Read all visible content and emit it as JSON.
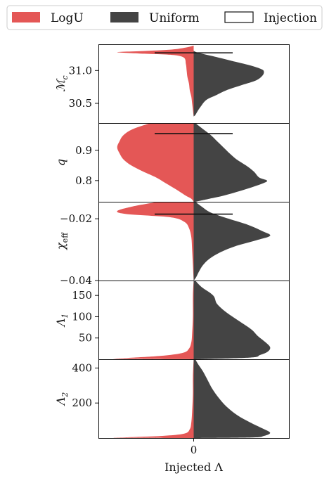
{
  "legend": {
    "items": [
      {
        "label": "LogU",
        "color": "#e45756",
        "kind": "fill"
      },
      {
        "label": "Uniform",
        "color": "#444444",
        "kind": "fill"
      },
      {
        "label": "Injection",
        "color": "#ffffff",
        "kind": "outline"
      }
    ]
  },
  "chart_data": {
    "type": "violin",
    "xlabel": "Injected Λ",
    "x_ticks": [
      "0"
    ],
    "colors": {
      "left": "#e45756",
      "right": "#444444",
      "injection": "#111111"
    },
    "panels": [
      {
        "id": "mc",
        "ylabel_main": "ℳ",
        "ylabel_sub": "c",
        "ylim": [
          30.2,
          31.4
        ],
        "yticks": [
          31.0,
          30.5
        ],
        "ytick_labels": [
          "31.0",
          "30.5"
        ],
        "injection": 31.27,
        "left": [
          [
            31.38,
            0.0
          ],
          [
            31.35,
            0.1
          ],
          [
            31.32,
            0.28
          ],
          [
            31.3,
            0.6
          ],
          [
            31.28,
            0.98
          ],
          [
            31.26,
            0.7
          ],
          [
            31.24,
            0.3
          ],
          [
            31.2,
            0.13
          ],
          [
            31.1,
            0.1
          ],
          [
            31.0,
            0.09
          ],
          [
            30.9,
            0.08
          ],
          [
            30.8,
            0.06
          ],
          [
            30.7,
            0.05
          ],
          [
            30.6,
            0.03
          ],
          [
            30.5,
            0.02
          ],
          [
            30.4,
            0.01
          ],
          [
            30.3,
            0.0
          ]
        ],
        "right": [
          [
            31.3,
            0.0
          ],
          [
            31.27,
            0.06
          ],
          [
            31.22,
            0.24
          ],
          [
            31.15,
            0.48
          ],
          [
            31.08,
            0.72
          ],
          [
            31.02,
            0.87
          ],
          [
            30.98,
            0.9
          ],
          [
            30.92,
            0.88
          ],
          [
            30.85,
            0.8
          ],
          [
            30.78,
            0.62
          ],
          [
            30.7,
            0.42
          ],
          [
            30.62,
            0.28
          ],
          [
            30.55,
            0.16
          ],
          [
            30.45,
            0.09
          ],
          [
            30.38,
            0.05
          ],
          [
            30.32,
            0.02
          ],
          [
            30.3,
            0.0
          ]
        ]
      },
      {
        "id": "q",
        "ylabel_main": "q",
        "ylabel_sub": "",
        "ylim": [
          0.73,
          0.99
        ],
        "yticks": [
          0.9,
          0.8
        ],
        "ytick_labels": [
          "0.9",
          "0.8"
        ],
        "injection": 0.955,
        "left": [
          [
            0.99,
            0.55
          ],
          [
            0.97,
            0.78
          ],
          [
            0.95,
            0.9
          ],
          [
            0.93,
            0.95
          ],
          [
            0.91,
            0.98
          ],
          [
            0.89,
            0.95
          ],
          [
            0.87,
            0.9
          ],
          [
            0.85,
            0.8
          ],
          [
            0.83,
            0.65
          ],
          [
            0.81,
            0.48
          ],
          [
            0.79,
            0.35
          ],
          [
            0.77,
            0.22
          ],
          [
            0.75,
            0.1
          ],
          [
            0.74,
            0.03
          ],
          [
            0.73,
            0.0
          ]
        ],
        "right": [
          [
            0.99,
            0.02
          ],
          [
            0.97,
            0.12
          ],
          [
            0.95,
            0.22
          ],
          [
            0.93,
            0.3
          ],
          [
            0.91,
            0.38
          ],
          [
            0.89,
            0.46
          ],
          [
            0.87,
            0.55
          ],
          [
            0.85,
            0.67
          ],
          [
            0.83,
            0.77
          ],
          [
            0.81,
            0.84
          ],
          [
            0.8,
            0.94
          ],
          [
            0.79,
            0.88
          ],
          [
            0.77,
            0.65
          ],
          [
            0.75,
            0.38
          ],
          [
            0.74,
            0.2
          ],
          [
            0.73,
            0.02
          ]
        ]
      },
      {
        "id": "chi",
        "ylabel_main": "χ",
        "ylabel_sub": "eff",
        "ylim": [
          -0.04,
          -0.0145
        ],
        "yticks": [
          -0.02,
          -0.04
        ],
        "ytick_labels": [
          "−0.02",
          "−0.04"
        ],
        "injection": -0.0185,
        "left": [
          [
            -0.0145,
            0.45
          ],
          [
            -0.016,
            0.78
          ],
          [
            -0.0175,
            0.98
          ],
          [
            -0.0185,
            0.85
          ],
          [
            -0.0195,
            0.3
          ],
          [
            -0.021,
            0.12
          ],
          [
            -0.023,
            0.06
          ],
          [
            -0.026,
            0.03
          ],
          [
            -0.03,
            0.02
          ],
          [
            -0.035,
            0.01
          ],
          [
            -0.04,
            0.0
          ]
        ],
        "right": [
          [
            -0.0145,
            0.02
          ],
          [
            -0.016,
            0.1
          ],
          [
            -0.018,
            0.22
          ],
          [
            -0.02,
            0.45
          ],
          [
            -0.022,
            0.7
          ],
          [
            -0.024,
            0.88
          ],
          [
            -0.0255,
            0.98
          ],
          [
            -0.027,
            0.8
          ],
          [
            -0.029,
            0.52
          ],
          [
            -0.031,
            0.33
          ],
          [
            -0.033,
            0.2
          ],
          [
            -0.035,
            0.12
          ],
          [
            -0.037,
            0.07
          ],
          [
            -0.039,
            0.03
          ],
          [
            -0.04,
            0.0
          ]
        ]
      },
      {
        "id": "lambda1",
        "ylabel_main": "Λ",
        "ylabel_sub": "1",
        "ylim": [
          0,
          185
        ],
        "yticks": [
          150,
          100,
          50
        ],
        "ytick_labels": [
          "150",
          "100",
          "50"
        ],
        "injection": null,
        "left": [
          [
            185,
            0.0
          ],
          [
            150,
            0.01
          ],
          [
            100,
            0.01
          ],
          [
            60,
            0.02
          ],
          [
            40,
            0.03
          ],
          [
            25,
            0.06
          ],
          [
            15,
            0.14
          ],
          [
            8,
            0.42
          ],
          [
            3,
            0.85
          ],
          [
            1,
            0.98
          ],
          [
            0,
            0.0
          ]
        ],
        "right": [
          [
            185,
            0.02
          ],
          [
            170,
            0.1
          ],
          [
            150,
            0.25
          ],
          [
            130,
            0.3
          ],
          [
            110,
            0.42
          ],
          [
            90,
            0.58
          ],
          [
            70,
            0.74
          ],
          [
            55,
            0.82
          ],
          [
            40,
            0.92
          ],
          [
            28,
            0.98
          ],
          [
            18,
            0.95
          ],
          [
            10,
            0.85
          ],
          [
            4,
            0.72
          ],
          [
            0,
            0.0
          ]
        ]
      },
      {
        "id": "lambda2",
        "ylabel_main": "Λ",
        "ylabel_sub": "2",
        "ylim": [
          0,
          450
        ],
        "yticks": [
          400,
          200
        ],
        "ytick_labels": [
          "400",
          "200"
        ],
        "injection": null,
        "left": [
          [
            450,
            0.0
          ],
          [
            350,
            0.01
          ],
          [
            250,
            0.01
          ],
          [
            150,
            0.02
          ],
          [
            90,
            0.03
          ],
          [
            50,
            0.05
          ],
          [
            25,
            0.12
          ],
          [
            12,
            0.4
          ],
          [
            4,
            0.85
          ],
          [
            1,
            0.98
          ],
          [
            0,
            0.0
          ]
        ],
        "right": [
          [
            450,
            0.02
          ],
          [
            420,
            0.06
          ],
          [
            380,
            0.12
          ],
          [
            330,
            0.18
          ],
          [
            280,
            0.24
          ],
          [
            230,
            0.32
          ],
          [
            180,
            0.42
          ],
          [
            130,
            0.56
          ],
          [
            90,
            0.72
          ],
          [
            55,
            0.88
          ],
          [
            30,
            0.98
          ],
          [
            12,
            0.9
          ],
          [
            3,
            0.75
          ],
          [
            0,
            0.0
          ]
        ]
      }
    ]
  }
}
